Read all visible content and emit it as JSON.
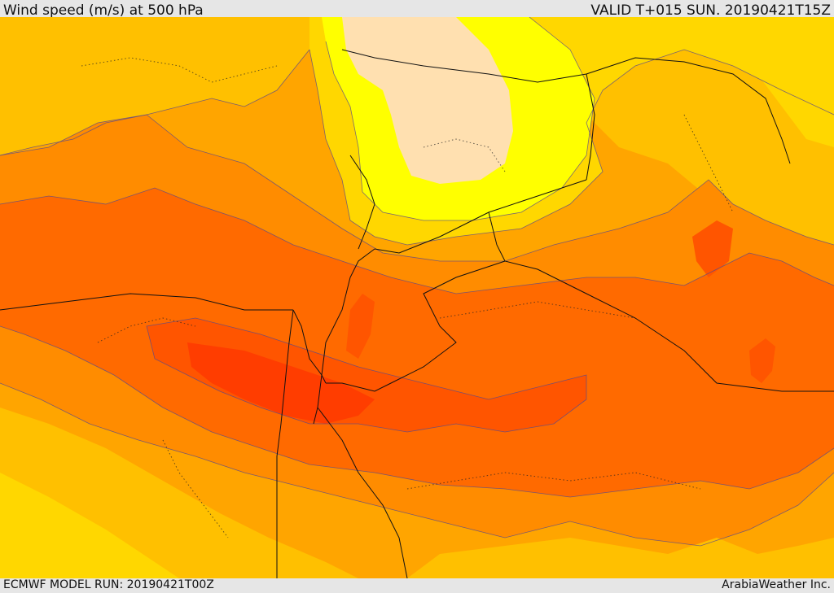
{
  "header": {
    "title": "Wind speed (m/s) at 500 hPa",
    "valid": "VALID T+015 SUN. 20190421T15Z"
  },
  "footer": {
    "model_run": "ECMWF MODEL RUN: 20190421T00Z",
    "credit": "ArabiaWeather Inc."
  },
  "map": {
    "variable": "wind speed",
    "unit": "m/s",
    "pressure_level": "500 hPa",
    "palette": {
      "calm": "#ffe0b0",
      "light": "#ffff00",
      "low": "#ffd700",
      "moderate": "#ffc000",
      "medium": "#ffa500",
      "strong": "#ff8c00",
      "stronger": "#ff6a00",
      "jet": "#ff5500",
      "jet_core": "#ff3d00"
    },
    "contour_color": "#5a4a8a",
    "border_color": "#111111"
  }
}
